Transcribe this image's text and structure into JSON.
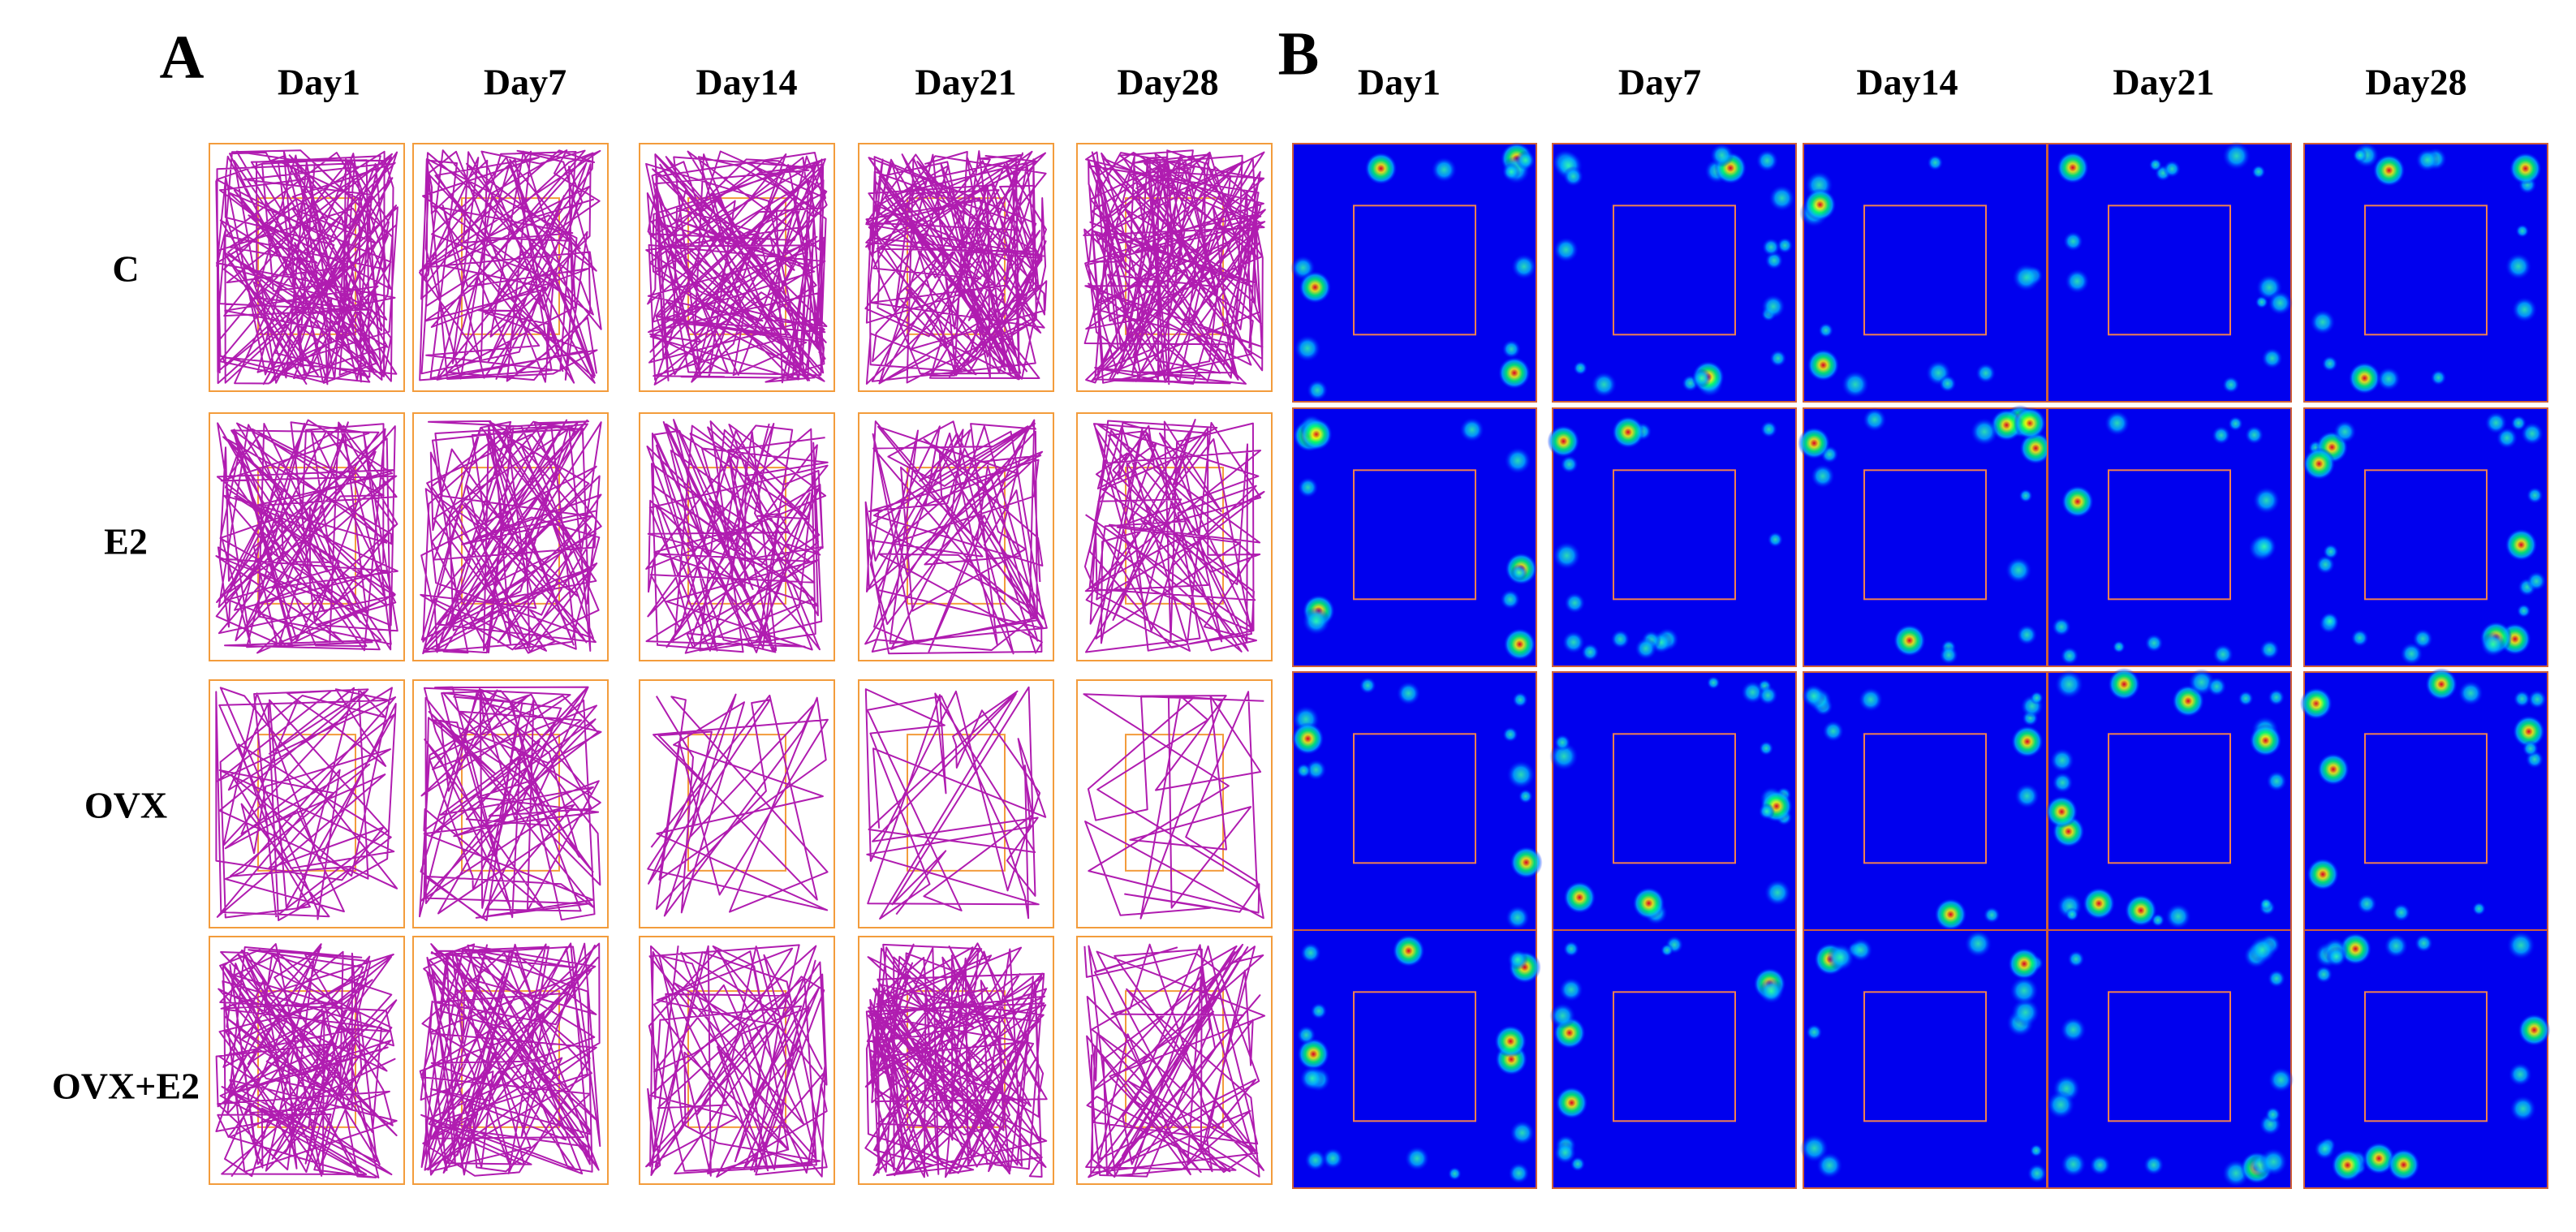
{
  "panels": [
    {
      "label": "A",
      "columns": [
        "Day1",
        "Day7",
        "Day14",
        "Day21",
        "Day28"
      ],
      "rows": [
        "C",
        "E2",
        "OVX",
        "OVX+E2"
      ]
    },
    {
      "label": "B",
      "columns": [
        "Day1",
        "Day7",
        "Day14",
        "Day21",
        "Day28"
      ]
    }
  ]
}
